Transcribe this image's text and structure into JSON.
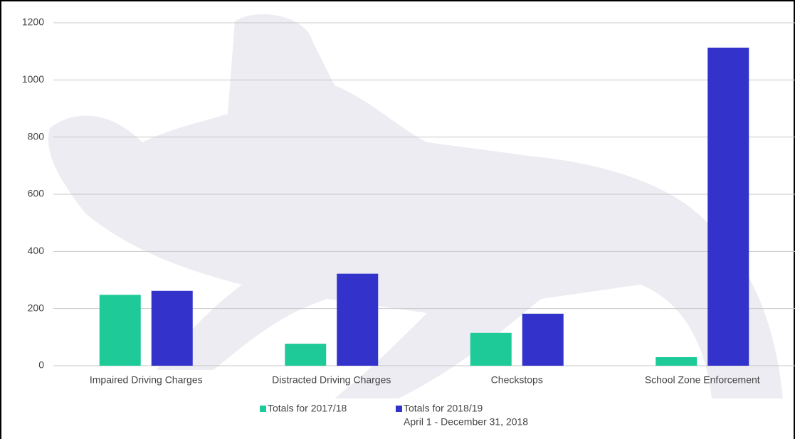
{
  "chart_data": {
    "type": "bar",
    "categories": [
      "Impaired Driving Charges",
      "Distracted Driving Charges",
      "Checkstops",
      "School Zone Enforcement"
    ],
    "series": [
      {
        "name": "Totals for 2017/18",
        "color": "#1ecb98",
        "values": [
          248,
          77,
          115,
          30
        ]
      },
      {
        "name": "Totals for 2018/19",
        "color": "#3333cc",
        "values": [
          262,
          322,
          182,
          1113
        ]
      }
    ],
    "legend_note": "April 1 - December 31, 2018",
    "ylim": [
      0,
      1200
    ],
    "yticks": [
      0,
      200,
      400,
      600,
      800,
      1000,
      1200
    ],
    "grid": true,
    "legend": "bottom"
  }
}
